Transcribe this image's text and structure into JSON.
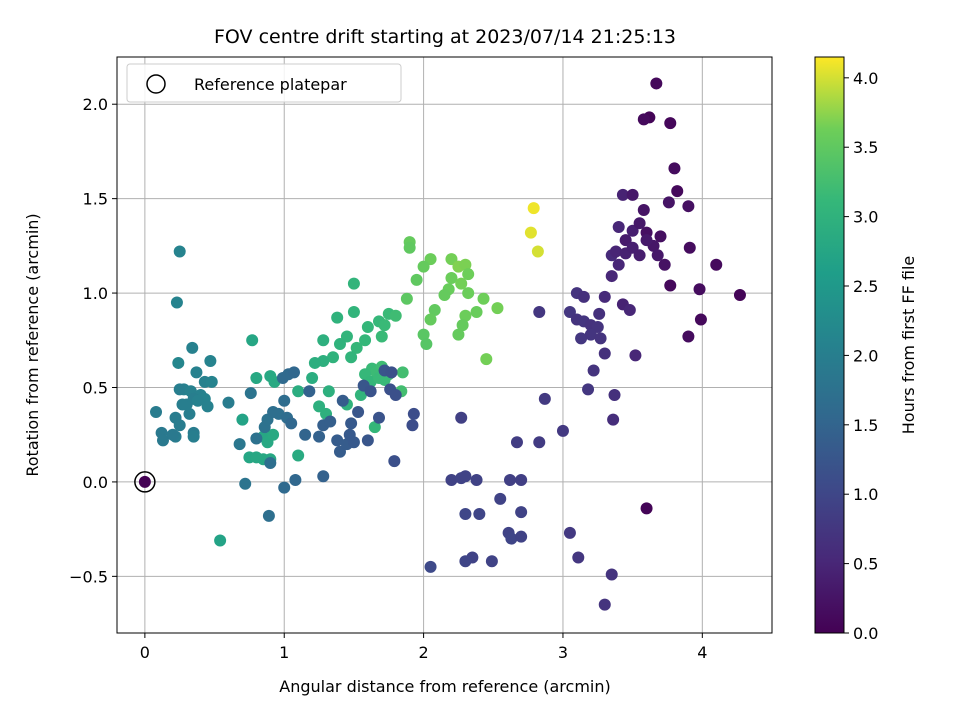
{
  "chart_data": {
    "type": "scatter",
    "title": "FOV centre drift starting at 2023/07/14 21:25:13",
    "xlabel": "Angular distance from reference (arcmin)",
    "ylabel": "Rotation from reference (arcmin)",
    "xlim": [
      -0.2,
      4.5
    ],
    "ylim": [
      -0.8,
      2.25
    ],
    "xticks": [
      0,
      1,
      2,
      3,
      4
    ],
    "yticks": [
      -0.5,
      0.0,
      0.5,
      1.0,
      1.5,
      2.0
    ],
    "ytick_labels": [
      "−0.5",
      "0.0",
      "0.5",
      "1.0",
      "1.5",
      "2.0"
    ],
    "grid": true,
    "legend": {
      "placement": "top-left",
      "entries": [
        "Reference platepar"
      ]
    },
    "reference_point": {
      "x": 0,
      "y": 0
    },
    "colorbar": {
      "label": "Hours from first FF file",
      "range": [
        0.0,
        4.15
      ],
      "ticks": [
        0.0,
        0.5,
        1.0,
        1.5,
        2.0,
        2.5,
        3.0,
        3.5,
        4.0
      ],
      "colormap": "viridis"
    },
    "points": [
      {
        "x": 3.67,
        "y": 2.11,
        "c": 0.1
      },
      {
        "x": 3.62,
        "y": 1.93,
        "c": 0.05
      },
      {
        "x": 3.58,
        "y": 1.92,
        "c": 0.12
      },
      {
        "x": 3.77,
        "y": 1.9,
        "c": 0.08
      },
      {
        "x": 3.8,
        "y": 1.66,
        "c": 0.15
      },
      {
        "x": 3.82,
        "y": 1.54,
        "c": 0.1
      },
      {
        "x": 3.9,
        "y": 1.46,
        "c": 0.2
      },
      {
        "x": 3.76,
        "y": 1.48,
        "c": 0.25
      },
      {
        "x": 3.43,
        "y": 1.52,
        "c": 0.45
      },
      {
        "x": 3.5,
        "y": 1.52,
        "c": 0.3
      },
      {
        "x": 3.4,
        "y": 1.35,
        "c": 0.5
      },
      {
        "x": 3.45,
        "y": 1.28,
        "c": 0.35
      },
      {
        "x": 3.5,
        "y": 1.33,
        "c": 0.4
      },
      {
        "x": 3.58,
        "y": 1.44,
        "c": 0.25
      },
      {
        "x": 3.55,
        "y": 1.37,
        "c": 0.3
      },
      {
        "x": 3.6,
        "y": 1.32,
        "c": 0.2
      },
      {
        "x": 3.65,
        "y": 1.25,
        "c": 0.28
      },
      {
        "x": 3.7,
        "y": 1.3,
        "c": 0.18
      },
      {
        "x": 3.35,
        "y": 1.2,
        "c": 0.55
      },
      {
        "x": 3.38,
        "y": 1.22,
        "c": 0.48
      },
      {
        "x": 3.4,
        "y": 1.15,
        "c": 0.5
      },
      {
        "x": 3.45,
        "y": 1.21,
        "c": 0.42
      },
      {
        "x": 3.5,
        "y": 1.24,
        "c": 0.4
      },
      {
        "x": 3.55,
        "y": 1.2,
        "c": 0.38
      },
      {
        "x": 3.6,
        "y": 1.28,
        "c": 0.32
      },
      {
        "x": 3.68,
        "y": 1.2,
        "c": 0.3
      },
      {
        "x": 3.73,
        "y": 1.15,
        "c": 0.22
      },
      {
        "x": 3.91,
        "y": 1.24,
        "c": 0.15
      },
      {
        "x": 3.77,
        "y": 1.04,
        "c": 0.1
      },
      {
        "x": 4.1,
        "y": 1.15,
        "c": 0.12
      },
      {
        "x": 3.98,
        "y": 1.02,
        "c": 0.15
      },
      {
        "x": 4.27,
        "y": 0.99,
        "c": 0.05
      },
      {
        "x": 3.35,
        "y": 1.09,
        "c": 0.5
      },
      {
        "x": 3.3,
        "y": 0.98,
        "c": 0.55
      },
      {
        "x": 3.43,
        "y": 0.94,
        "c": 0.45
      },
      {
        "x": 3.48,
        "y": 0.91,
        "c": 0.5
      },
      {
        "x": 3.99,
        "y": 0.86,
        "c": 0.1
      },
      {
        "x": 3.9,
        "y": 0.77,
        "c": 0.15
      },
      {
        "x": 3.52,
        "y": 0.67,
        "c": 0.5
      },
      {
        "x": 3.6,
        "y": -0.14,
        "c": 0.05
      },
      {
        "x": 3.1,
        "y": 1.0,
        "c": 0.7
      },
      {
        "x": 3.15,
        "y": 0.98,
        "c": 0.65
      },
      {
        "x": 3.05,
        "y": 0.9,
        "c": 0.75
      },
      {
        "x": 3.1,
        "y": 0.86,
        "c": 0.7
      },
      {
        "x": 3.15,
        "y": 0.85,
        "c": 0.72
      },
      {
        "x": 3.2,
        "y": 0.83,
        "c": 0.68
      },
      {
        "x": 3.25,
        "y": 0.82,
        "c": 0.7
      },
      {
        "x": 3.26,
        "y": 0.89,
        "c": 0.65
      },
      {
        "x": 3.13,
        "y": 0.76,
        "c": 0.75
      },
      {
        "x": 3.2,
        "y": 0.78,
        "c": 0.72
      },
      {
        "x": 3.27,
        "y": 0.76,
        "c": 0.7
      },
      {
        "x": 3.3,
        "y": 0.68,
        "c": 0.65
      },
      {
        "x": 3.22,
        "y": 0.59,
        "c": 0.7
      },
      {
        "x": 3.18,
        "y": 0.49,
        "c": 0.75
      },
      {
        "x": 3.37,
        "y": 0.46,
        "c": 0.65
      },
      {
        "x": 3.36,
        "y": 0.33,
        "c": 0.62
      },
      {
        "x": 2.83,
        "y": 0.9,
        "c": 0.75
      },
      {
        "x": 2.87,
        "y": 0.44,
        "c": 0.8
      },
      {
        "x": 2.83,
        "y": 0.21,
        "c": 0.82
      },
      {
        "x": 3.0,
        "y": 0.27,
        "c": 0.78
      },
      {
        "x": 2.67,
        "y": 0.21,
        "c": 0.85
      },
      {
        "x": 2.27,
        "y": 0.34,
        "c": 0.9
      },
      {
        "x": 2.2,
        "y": 0.01,
        "c": 0.92
      },
      {
        "x": 2.27,
        "y": 0.02,
        "c": 0.95
      },
      {
        "x": 2.3,
        "y": 0.03,
        "c": 0.95
      },
      {
        "x": 2.38,
        "y": 0.01,
        "c": 0.92
      },
      {
        "x": 2.62,
        "y": 0.01,
        "c": 0.9
      },
      {
        "x": 2.7,
        "y": 0.01,
        "c": 0.88
      },
      {
        "x": 2.55,
        "y": -0.09,
        "c": 0.95
      },
      {
        "x": 2.3,
        "y": -0.17,
        "c": 1.0
      },
      {
        "x": 2.4,
        "y": -0.17,
        "c": 0.98
      },
      {
        "x": 2.7,
        "y": -0.16,
        "c": 0.95
      },
      {
        "x": 2.61,
        "y": -0.27,
        "c": 0.95
      },
      {
        "x": 2.63,
        "y": -0.3,
        "c": 0.98
      },
      {
        "x": 2.7,
        "y": -0.29,
        "c": 0.92
      },
      {
        "x": 3.05,
        "y": -0.27,
        "c": 0.78
      },
      {
        "x": 3.11,
        "y": -0.4,
        "c": 0.75
      },
      {
        "x": 2.35,
        "y": -0.4,
        "c": 0.95
      },
      {
        "x": 2.3,
        "y": -0.42,
        "c": 0.98
      },
      {
        "x": 2.49,
        "y": -0.42,
        "c": 0.95
      },
      {
        "x": 2.05,
        "y": -0.45,
        "c": 1.05
      },
      {
        "x": 3.35,
        "y": -0.49,
        "c": 0.7
      },
      {
        "x": 3.3,
        "y": -0.65,
        "c": 0.7
      },
      {
        "x": 2.79,
        "y": 1.45,
        "c": 4.1
      },
      {
        "x": 2.77,
        "y": 1.32,
        "c": 4.05
      },
      {
        "x": 2.82,
        "y": 1.22,
        "c": 4.0
      },
      {
        "x": 1.9,
        "y": 1.27,
        "c": 3.55
      },
      {
        "x": 1.9,
        "y": 1.24,
        "c": 3.5
      },
      {
        "x": 2.05,
        "y": 1.18,
        "c": 3.6
      },
      {
        "x": 2.0,
        "y": 1.14,
        "c": 3.55
      },
      {
        "x": 2.2,
        "y": 1.18,
        "c": 3.65
      },
      {
        "x": 2.25,
        "y": 1.14,
        "c": 3.7
      },
      {
        "x": 2.3,
        "y": 1.15,
        "c": 3.68
      },
      {
        "x": 2.32,
        "y": 1.1,
        "c": 3.62
      },
      {
        "x": 2.2,
        "y": 1.08,
        "c": 3.6
      },
      {
        "x": 2.27,
        "y": 1.05,
        "c": 3.65
      },
      {
        "x": 2.18,
        "y": 1.02,
        "c": 3.58
      },
      {
        "x": 2.32,
        "y": 1.0,
        "c": 3.6
      },
      {
        "x": 2.15,
        "y": 0.99,
        "c": 3.55
      },
      {
        "x": 2.43,
        "y": 0.97,
        "c": 3.62
      },
      {
        "x": 2.53,
        "y": 0.92,
        "c": 3.65
      },
      {
        "x": 1.95,
        "y": 1.07,
        "c": 3.5
      },
      {
        "x": 1.88,
        "y": 0.97,
        "c": 3.48
      },
      {
        "x": 2.08,
        "y": 0.91,
        "c": 3.52
      },
      {
        "x": 2.05,
        "y": 0.86,
        "c": 3.55
      },
      {
        "x": 2.3,
        "y": 0.88,
        "c": 3.6
      },
      {
        "x": 2.38,
        "y": 0.9,
        "c": 3.58
      },
      {
        "x": 2.28,
        "y": 0.83,
        "c": 3.55
      },
      {
        "x": 2.25,
        "y": 0.78,
        "c": 3.55
      },
      {
        "x": 2.0,
        "y": 0.78,
        "c": 3.45
      },
      {
        "x": 2.02,
        "y": 0.73,
        "c": 3.42
      },
      {
        "x": 2.45,
        "y": 0.65,
        "c": 3.65
      },
      {
        "x": 1.5,
        "y": 1.05,
        "c": 3.05
      },
      {
        "x": 1.5,
        "y": 0.9,
        "c": 3.05
      },
      {
        "x": 1.38,
        "y": 0.87,
        "c": 3.0
      },
      {
        "x": 1.75,
        "y": 0.89,
        "c": 3.15
      },
      {
        "x": 1.6,
        "y": 0.82,
        "c": 3.1
      },
      {
        "x": 1.68,
        "y": 0.85,
        "c": 3.12
      },
      {
        "x": 1.72,
        "y": 0.83,
        "c": 3.15
      },
      {
        "x": 1.8,
        "y": 0.88,
        "c": 3.2
      },
      {
        "x": 1.45,
        "y": 0.77,
        "c": 3.05
      },
      {
        "x": 1.4,
        "y": 0.73,
        "c": 3.0
      },
      {
        "x": 1.28,
        "y": 0.75,
        "c": 2.95
      },
      {
        "x": 1.52,
        "y": 0.71,
        "c": 3.1
      },
      {
        "x": 1.58,
        "y": 0.75,
        "c": 3.1
      },
      {
        "x": 1.7,
        "y": 0.77,
        "c": 3.15
      },
      {
        "x": 1.48,
        "y": 0.66,
        "c": 3.05
      },
      {
        "x": 1.35,
        "y": 0.66,
        "c": 3.0
      },
      {
        "x": 1.28,
        "y": 0.64,
        "c": 2.95
      },
      {
        "x": 1.22,
        "y": 0.63,
        "c": 2.92
      },
      {
        "x": 1.63,
        "y": 0.6,
        "c": 3.15
      },
      {
        "x": 1.66,
        "y": 0.58,
        "c": 3.18
      },
      {
        "x": 1.7,
        "y": 0.61,
        "c": 3.2
      },
      {
        "x": 1.75,
        "y": 0.57,
        "c": 3.2
      },
      {
        "x": 1.85,
        "y": 0.58,
        "c": 3.25
      },
      {
        "x": 1.58,
        "y": 0.57,
        "c": 3.12
      },
      {
        "x": 1.62,
        "y": 0.53,
        "c": 3.1
      },
      {
        "x": 1.68,
        "y": 0.55,
        "c": 3.15
      },
      {
        "x": 1.72,
        "y": 0.54,
        "c": 3.15
      },
      {
        "x": 1.84,
        "y": 0.48,
        "c": 3.25
      },
      {
        "x": 1.55,
        "y": 0.46,
        "c": 3.05
      },
      {
        "x": 1.45,
        "y": 0.41,
        "c": 3.0
      },
      {
        "x": 1.32,
        "y": 0.48,
        "c": 2.95
      },
      {
        "x": 1.25,
        "y": 0.4,
        "c": 2.95
      },
      {
        "x": 1.3,
        "y": 0.36,
        "c": 2.95
      },
      {
        "x": 1.2,
        "y": 0.55,
        "c": 2.9
      },
      {
        "x": 1.1,
        "y": 0.48,
        "c": 2.9
      },
      {
        "x": 1.65,
        "y": 0.29,
        "c": 3.1
      },
      {
        "x": 1.1,
        "y": 0.14,
        "c": 2.85
      },
      {
        "x": 0.77,
        "y": 0.75,
        "c": 2.75
      },
      {
        "x": 0.7,
        "y": 0.33,
        "c": 2.7
      },
      {
        "x": 0.8,
        "y": 0.55,
        "c": 2.8
      },
      {
        "x": 0.9,
        "y": 0.56,
        "c": 2.8
      },
      {
        "x": 0.93,
        "y": 0.53,
        "c": 2.82
      },
      {
        "x": 0.85,
        "y": 0.24,
        "c": 2.78
      },
      {
        "x": 0.88,
        "y": 0.21,
        "c": 2.8
      },
      {
        "x": 0.92,
        "y": 0.25,
        "c": 2.82
      },
      {
        "x": 0.9,
        "y": 0.12,
        "c": 2.8
      },
      {
        "x": 0.85,
        "y": 0.12,
        "c": 2.78
      },
      {
        "x": 0.75,
        "y": 0.13,
        "c": 2.75
      },
      {
        "x": 0.8,
        "y": 0.13,
        "c": 2.78
      },
      {
        "x": 0.54,
        "y": -0.31,
        "c": 2.7
      },
      {
        "x": 0.25,
        "y": 1.22,
        "c": 2.1
      },
      {
        "x": 0.23,
        "y": 0.95,
        "c": 2.1
      },
      {
        "x": 0.24,
        "y": 0.63,
        "c": 2.15
      },
      {
        "x": 0.34,
        "y": 0.71,
        "c": 2.05
      },
      {
        "x": 0.47,
        "y": 0.64,
        "c": 2.1
      },
      {
        "x": 0.37,
        "y": 0.58,
        "c": 2.05
      },
      {
        "x": 0.43,
        "y": 0.53,
        "c": 2.05
      },
      {
        "x": 0.48,
        "y": 0.53,
        "c": 2.1
      },
      {
        "x": 0.28,
        "y": 0.49,
        "c": 2.05
      },
      {
        "x": 0.25,
        "y": 0.49,
        "c": 2.0
      },
      {
        "x": 0.33,
        "y": 0.48,
        "c": 2.05
      },
      {
        "x": 0.4,
        "y": 0.46,
        "c": 2.05
      },
      {
        "x": 0.43,
        "y": 0.44,
        "c": 2.1
      },
      {
        "x": 0.35,
        "y": 0.44,
        "c": 2.0
      },
      {
        "x": 0.38,
        "y": 0.43,
        "c": 2.05
      },
      {
        "x": 0.3,
        "y": 0.41,
        "c": 2.0
      },
      {
        "x": 0.27,
        "y": 0.41,
        "c": 2.0
      },
      {
        "x": 0.45,
        "y": 0.4,
        "c": 2.05
      },
      {
        "x": 0.22,
        "y": 0.34,
        "c": 1.95
      },
      {
        "x": 0.32,
        "y": 0.36,
        "c": 2.0
      },
      {
        "x": 0.25,
        "y": 0.3,
        "c": 1.95
      },
      {
        "x": 0.35,
        "y": 0.26,
        "c": 1.95
      },
      {
        "x": 0.35,
        "y": 0.24,
        "c": 2.0
      },
      {
        "x": 0.22,
        "y": 0.24,
        "c": 1.95
      },
      {
        "x": 0.08,
        "y": 0.37,
        "c": 1.95
      },
      {
        "x": 0.12,
        "y": 0.26,
        "c": 1.9
      },
      {
        "x": 0.13,
        "y": 0.22,
        "c": 1.9
      },
      {
        "x": 0.2,
        "y": 0.25,
        "c": 1.9
      },
      {
        "x": 0.6,
        "y": 0.42,
        "c": 1.95
      },
      {
        "x": 0.68,
        "y": 0.2,
        "c": 1.85
      },
      {
        "x": 0.72,
        "y": -0.01,
        "c": 1.8
      },
      {
        "x": 0.76,
        "y": 0.47,
        "c": 1.8
      },
      {
        "x": 0.8,
        "y": 0.23,
        "c": 1.75
      },
      {
        "x": 0.86,
        "y": 0.29,
        "c": 1.75
      },
      {
        "x": 0.88,
        "y": 0.33,
        "c": 1.75
      },
      {
        "x": 0.92,
        "y": 0.37,
        "c": 1.7
      },
      {
        "x": 0.96,
        "y": 0.36,
        "c": 1.7
      },
      {
        "x": 1.0,
        "y": 0.43,
        "c": 1.65
      },
      {
        "x": 1.02,
        "y": 0.34,
        "c": 1.65
      },
      {
        "x": 0.99,
        "y": 0.55,
        "c": 1.6
      },
      {
        "x": 1.03,
        "y": 0.57,
        "c": 1.6
      },
      {
        "x": 1.07,
        "y": 0.58,
        "c": 1.55
      },
      {
        "x": 0.9,
        "y": 0.1,
        "c": 1.7
      },
      {
        "x": 0.89,
        "y": -0.18,
        "c": 1.7
      },
      {
        "x": 1.0,
        "y": -0.03,
        "c": 1.6
      },
      {
        "x": 1.08,
        "y": 0.01,
        "c": 1.55
      },
      {
        "x": 1.05,
        "y": 0.31,
        "c": 1.55
      },
      {
        "x": 1.15,
        "y": 0.25,
        "c": 1.5
      },
      {
        "x": 1.18,
        "y": 0.48,
        "c": 1.45
      },
      {
        "x": 1.25,
        "y": 0.24,
        "c": 1.45
      },
      {
        "x": 1.28,
        "y": 0.3,
        "c": 1.4
      },
      {
        "x": 1.33,
        "y": 0.32,
        "c": 1.4
      },
      {
        "x": 1.28,
        "y": 0.03,
        "c": 1.45
      },
      {
        "x": 1.38,
        "y": 0.22,
        "c": 1.35
      },
      {
        "x": 1.4,
        "y": 0.16,
        "c": 1.35
      },
      {
        "x": 1.45,
        "y": 0.2,
        "c": 1.35
      },
      {
        "x": 1.5,
        "y": 0.21,
        "c": 1.3
      },
      {
        "x": 1.47,
        "y": 0.25,
        "c": 1.3
      },
      {
        "x": 1.42,
        "y": 0.43,
        "c": 1.35
      },
      {
        "x": 1.48,
        "y": 0.31,
        "c": 1.3
      },
      {
        "x": 1.53,
        "y": 0.37,
        "c": 1.25
      },
      {
        "x": 1.6,
        "y": 0.22,
        "c": 1.25
      },
      {
        "x": 1.57,
        "y": 0.51,
        "c": 1.25
      },
      {
        "x": 1.62,
        "y": 0.48,
        "c": 1.2
      },
      {
        "x": 1.68,
        "y": 0.34,
        "c": 1.2
      },
      {
        "x": 1.72,
        "y": 0.59,
        "c": 1.2
      },
      {
        "x": 1.76,
        "y": 0.49,
        "c": 1.15
      },
      {
        "x": 1.8,
        "y": 0.46,
        "c": 1.15
      },
      {
        "x": 1.77,
        "y": 0.58,
        "c": 1.15
      },
      {
        "x": 1.79,
        "y": 0.11,
        "c": 1.15
      },
      {
        "x": 1.93,
        "y": 0.36,
        "c": 1.1
      },
      {
        "x": 1.92,
        "y": 0.3,
        "c": 1.1
      }
    ]
  }
}
